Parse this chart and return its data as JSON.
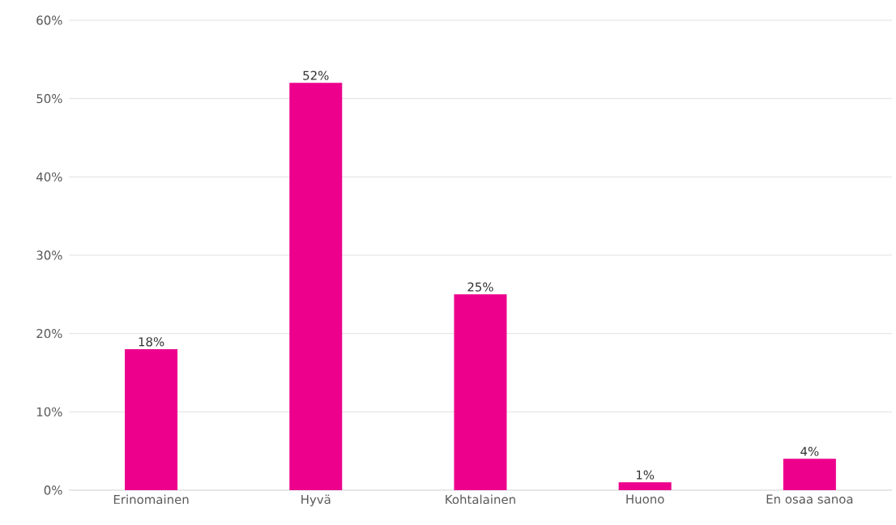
{
  "chart_data": {
    "type": "bar",
    "categories": [
      "Erinomainen",
      "Hyvä",
      "Kohtalainen",
      "Huono",
      "En osaa sanoa"
    ],
    "values": [
      18,
      52,
      25,
      1,
      4
    ],
    "value_labels": [
      "18%",
      "52%",
      "25%",
      "1%",
      "4%"
    ],
    "color": "#ec008c",
    "ylim": [
      0,
      60
    ],
    "yticks": [
      {
        "value": 0,
        "label": "0%"
      },
      {
        "value": 10,
        "label": "10%"
      },
      {
        "value": 20,
        "label": "20%"
      },
      {
        "value": 30,
        "label": "30%"
      },
      {
        "value": 40,
        "label": "40%"
      },
      {
        "value": 50,
        "label": "50%"
      },
      {
        "value": 60,
        "label": "60%"
      }
    ],
    "grid": "y"
  }
}
